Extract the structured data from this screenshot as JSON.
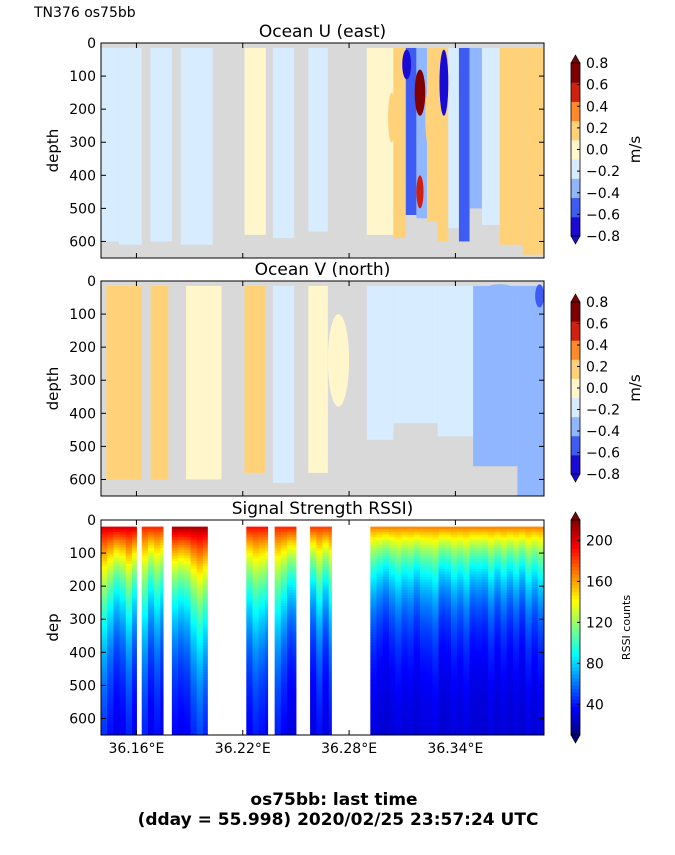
{
  "header_tag": "TN376 os75bb",
  "caption": {
    "line1": "os75bb: last time",
    "line2": "(dday = 55.998) 2020/02/25 23:57:24 UTC"
  },
  "colors": {
    "nodata": "#d9d9d9",
    "diverging": [
      "#1a0ad6",
      "#3f5cf2",
      "#8fb6ff",
      "#d7ecff",
      "#fff6cc",
      "#ffd27a",
      "#ff8a2a",
      "#d02010",
      "#800000"
    ],
    "jet": [
      "#00007f",
      "#0000ff",
      "#007fff",
      "#00ffff",
      "#7fff7f",
      "#ffff00",
      "#ff7f00",
      "#ff0000",
      "#7f0000"
    ]
  },
  "chart_data": [
    {
      "type": "heatmap",
      "title": "Ocean U (east)",
      "ylabel": "depth",
      "xlabel": "",
      "xlim": [
        36.14,
        36.39
      ],
      "ylim": [
        650,
        0
      ],
      "xticks": [
        36.16,
        36.22,
        36.28,
        36.34
      ],
      "xtick_labels": [
        "",
        "",
        "",
        ""
      ],
      "yticks": [
        0,
        100,
        200,
        300,
        400,
        500,
        600
      ],
      "ytick_labels": [
        "0",
        "100",
        "200",
        "300",
        "400",
        "500",
        "600"
      ],
      "colorbar": {
        "label": "m/s",
        "range": [
          -0.8,
          0.8
        ],
        "ticks": [
          0.8,
          0.6,
          0.4,
          0.2,
          0.0,
          -0.2,
          -0.4,
          -0.6,
          -0.8
        ],
        "tick_labels": [
          "0.8",
          "0.6",
          "0.4",
          "0.2",
          "0.0",
          "−0.2",
          "−0.4",
          "−0.6",
          "−0.8"
        ],
        "extend": "both"
      },
      "columns": [
        {
          "x0": 36.14,
          "x1": 36.15,
          "value": -0.15,
          "bottom": 600
        },
        {
          "x0": 36.15,
          "x1": 36.163,
          "value": -0.1,
          "bottom": 610
        },
        {
          "x0": 36.163,
          "x1": 36.168,
          "value": null,
          "bottom": 650
        },
        {
          "x0": 36.168,
          "x1": 36.18,
          "value": -0.25,
          "bottom": 600
        },
        {
          "x0": 36.18,
          "x1": 36.185,
          "value": null,
          "bottom": 650
        },
        {
          "x0": 36.185,
          "x1": 36.203,
          "value": -0.2,
          "bottom": 610
        },
        {
          "x0": 36.203,
          "x1": 36.221,
          "value": null,
          "bottom": 650
        },
        {
          "x0": 36.221,
          "x1": 36.233,
          "value": -0.05,
          "bottom": 580
        },
        {
          "x0": 36.233,
          "x1": 36.237,
          "value": null,
          "bottom": 650
        },
        {
          "x0": 36.237,
          "x1": 36.249,
          "value": -0.1,
          "bottom": 590
        },
        {
          "x0": 36.249,
          "x1": 36.257,
          "value": null,
          "bottom": 650
        },
        {
          "x0": 36.257,
          "x1": 36.268,
          "value": -0.1,
          "bottom": 570
        },
        {
          "x0": 36.268,
          "x1": 36.29,
          "value": null,
          "bottom": 650
        },
        {
          "x0": 36.29,
          "x1": 36.305,
          "value": -0.05,
          "bottom": 580
        },
        {
          "x0": 36.305,
          "x1": 36.312,
          "value": 0.1,
          "bottom": 590
        },
        {
          "x0": 36.312,
          "x1": 36.318,
          "value": -0.5,
          "bottom": 520
        },
        {
          "x0": 36.318,
          "x1": 36.324,
          "value": -0.3,
          "bottom": 530
        },
        {
          "x0": 36.324,
          "x1": 36.33,
          "value": 0.1,
          "bottom": 540
        },
        {
          "x0": 36.33,
          "x1": 36.336,
          "value": 0.1,
          "bottom": 600
        },
        {
          "x0": 36.336,
          "x1": 36.342,
          "value": -0.2,
          "bottom": 560
        },
        {
          "x0": 36.342,
          "x1": 36.348,
          "value": -0.45,
          "bottom": 600
        },
        {
          "x0": 36.348,
          "x1": 36.355,
          "value": -0.3,
          "bottom": 500
        },
        {
          "x0": 36.355,
          "x1": 36.365,
          "value": -0.1,
          "bottom": 550
        },
        {
          "x0": 36.365,
          "x1": 36.378,
          "value": 0.1,
          "bottom": 610
        },
        {
          "x0": 36.378,
          "x1": 36.39,
          "value": 0.1,
          "bottom": 640
        }
      ],
      "features": [
        {
          "x0": 36.317,
          "x1": 36.323,
          "d0": 80,
          "d1": 220,
          "value": 0.75
        },
        {
          "x0": 36.318,
          "x1": 36.322,
          "d0": 400,
          "d1": 500,
          "value": 0.6
        },
        {
          "x0": 36.31,
          "x1": 36.315,
          "d0": 20,
          "d1": 110,
          "value": -0.7
        },
        {
          "x0": 36.331,
          "x1": 36.336,
          "d0": 20,
          "d1": 220,
          "value": -0.7
        },
        {
          "x0": 36.302,
          "x1": 36.306,
          "d0": 150,
          "d1": 300,
          "value": 0.1
        },
        {
          "x0": 36.323,
          "x1": 36.328,
          "d0": 130,
          "d1": 320,
          "value": 0.1
        }
      ]
    },
    {
      "type": "heatmap",
      "title": "Ocean V (north)",
      "ylabel": "depth",
      "xlabel": "",
      "xlim": [
        36.14,
        36.39
      ],
      "ylim": [
        650,
        0
      ],
      "xticks": [
        36.16,
        36.22,
        36.28,
        36.34
      ],
      "xtick_labels": [
        "",
        "",
        "",
        ""
      ],
      "yticks": [
        0,
        100,
        200,
        300,
        400,
        500,
        600
      ],
      "ytick_labels": [
        "0",
        "100",
        "200",
        "300",
        "400",
        "500",
        "600"
      ],
      "colorbar": {
        "label": "m/s",
        "range": [
          -0.8,
          0.8
        ],
        "ticks": [
          0.8,
          0.6,
          0.4,
          0.2,
          0.0,
          -0.2,
          -0.4,
          -0.6,
          -0.8
        ],
        "tick_labels": [
          "0.8",
          "0.6",
          "0.4",
          "0.2",
          "0.0",
          "−0.2",
          "−0.4",
          "−0.6",
          "−0.8"
        ],
        "extend": "both"
      },
      "columns": [
        {
          "x0": 36.14,
          "x1": 36.143,
          "value": null,
          "bottom": 650
        },
        {
          "x0": 36.143,
          "x1": 36.163,
          "value": 0.1,
          "bottom": 600
        },
        {
          "x0": 36.163,
          "x1": 36.168,
          "value": null,
          "bottom": 650
        },
        {
          "x0": 36.168,
          "x1": 36.178,
          "value": 0.1,
          "bottom": 600
        },
        {
          "x0": 36.178,
          "x1": 36.188,
          "value": null,
          "bottom": 650
        },
        {
          "x0": 36.188,
          "x1": 36.208,
          "value": 0.05,
          "bottom": 600
        },
        {
          "x0": 36.208,
          "x1": 36.221,
          "value": null,
          "bottom": 650
        },
        {
          "x0": 36.221,
          "x1": 36.233,
          "value": 0.1,
          "bottom": 580
        },
        {
          "x0": 36.233,
          "x1": 36.237,
          "value": null,
          "bottom": 650
        },
        {
          "x0": 36.237,
          "x1": 36.249,
          "value": -0.1,
          "bottom": 610
        },
        {
          "x0": 36.249,
          "x1": 36.257,
          "value": null,
          "bottom": 650
        },
        {
          "x0": 36.257,
          "x1": 36.268,
          "value": 0.05,
          "bottom": 580
        },
        {
          "x0": 36.268,
          "x1": 36.29,
          "value": null,
          "bottom": 650
        },
        {
          "x0": 36.29,
          "x1": 36.305,
          "value": -0.1,
          "bottom": 480
        },
        {
          "x0": 36.305,
          "x1": 36.33,
          "value": -0.12,
          "bottom": 430
        },
        {
          "x0": 36.33,
          "x1": 36.35,
          "value": -0.1,
          "bottom": 470
        },
        {
          "x0": 36.35,
          "x1": 36.375,
          "value": -0.3,
          "bottom": 560
        },
        {
          "x0": 36.375,
          "x1": 36.39,
          "value": -0.35,
          "bottom": 650
        }
      ],
      "features": [
        {
          "x0": 36.385,
          "x1": 36.39,
          "d0": 10,
          "d1": 80,
          "value": -0.6
        },
        {
          "x0": 36.355,
          "x1": 36.375,
          "d0": 10,
          "d1": 60,
          "value": -0.4
        },
        {
          "x0": 36.268,
          "x1": 36.28,
          "d0": 100,
          "d1": 380,
          "value": 0.05
        }
      ]
    },
    {
      "type": "heatmap",
      "title": "Signal Strength RSSI)",
      "ylabel": "dep",
      "xlabel": "",
      "xlim": [
        36.14,
        36.39
      ],
      "ylim": [
        650,
        0
      ],
      "xticks": [
        36.16,
        36.22,
        36.28,
        36.34
      ],
      "xtick_labels": [
        "36.16°E",
        "36.22°E",
        "36.28°E",
        "36.34°E"
      ],
      "yticks": [
        0,
        100,
        200,
        300,
        400,
        500,
        600
      ],
      "ytick_labels": [
        "0",
        "100",
        "200",
        "300",
        "400",
        "500",
        "600"
      ],
      "colorbar": {
        "label": "RSSI counts",
        "range": [
          10,
          220
        ],
        "ticks": [
          200,
          160,
          120,
          80,
          40
        ],
        "tick_labels": [
          "200",
          "160",
          "120",
          "80",
          "40"
        ],
        "extend": "both"
      },
      "columns": [
        {
          "x0": 36.14,
          "x1": 36.16,
          "surface": 185,
          "decay": 0.0042
        },
        {
          "x0": 36.163,
          "x1": 36.175,
          "surface": 170,
          "decay": 0.0045
        },
        {
          "x0": 36.18,
          "x1": 36.2,
          "surface": 195,
          "decay": 0.004
        },
        {
          "x0": 36.222,
          "x1": 36.234,
          "surface": 175,
          "decay": 0.0047
        },
        {
          "x0": 36.238,
          "x1": 36.25,
          "surface": 170,
          "decay": 0.0046
        },
        {
          "x0": 36.258,
          "x1": 36.27,
          "surface": 165,
          "decay": 0.0048
        },
        {
          "x0": 36.292,
          "x1": 36.39,
          "surface": 150,
          "decay": 0.006
        }
      ]
    }
  ]
}
